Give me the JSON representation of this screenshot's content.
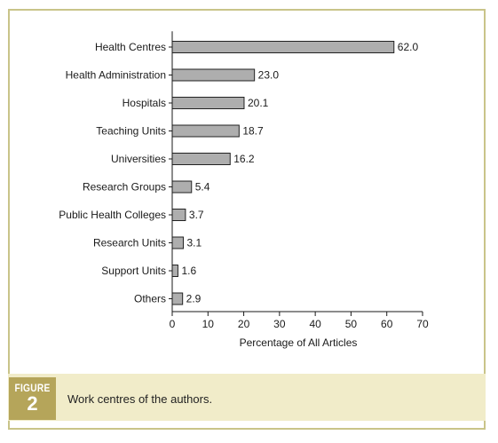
{
  "figure": {
    "label": "FIGURE",
    "number": "2",
    "caption": "Work centres of the authors."
  },
  "colors": {
    "bar_fill": "#aeaeae",
    "bar_stroke": "#222222",
    "frame": "#c9c489",
    "caption_band": "#f1ecc9",
    "badge": "#b5a55a"
  },
  "chart_data": {
    "type": "bar",
    "orientation": "horizontal",
    "categories": [
      "Health Centres",
      "Health Administration",
      "Hospitals",
      "Teaching Units",
      "Universities",
      "Research Groups",
      "Public Health Colleges",
      "Research Units",
      "Support Units",
      "Others"
    ],
    "values": [
      62.0,
      23.0,
      20.1,
      18.7,
      16.2,
      5.4,
      3.7,
      3.1,
      1.6,
      2.9
    ],
    "value_labels": [
      "62.0",
      "23.0",
      "20.1",
      "18.7",
      "16.2",
      "5.4",
      "3.7",
      "3.1",
      "1.6",
      "2.9"
    ],
    "xlabel": "Percentage of All Articles",
    "xlim": [
      0,
      70
    ],
    "xticks": [
      0,
      10,
      20,
      30,
      40,
      50,
      60,
      70
    ],
    "grid": false,
    "legend": "none"
  }
}
